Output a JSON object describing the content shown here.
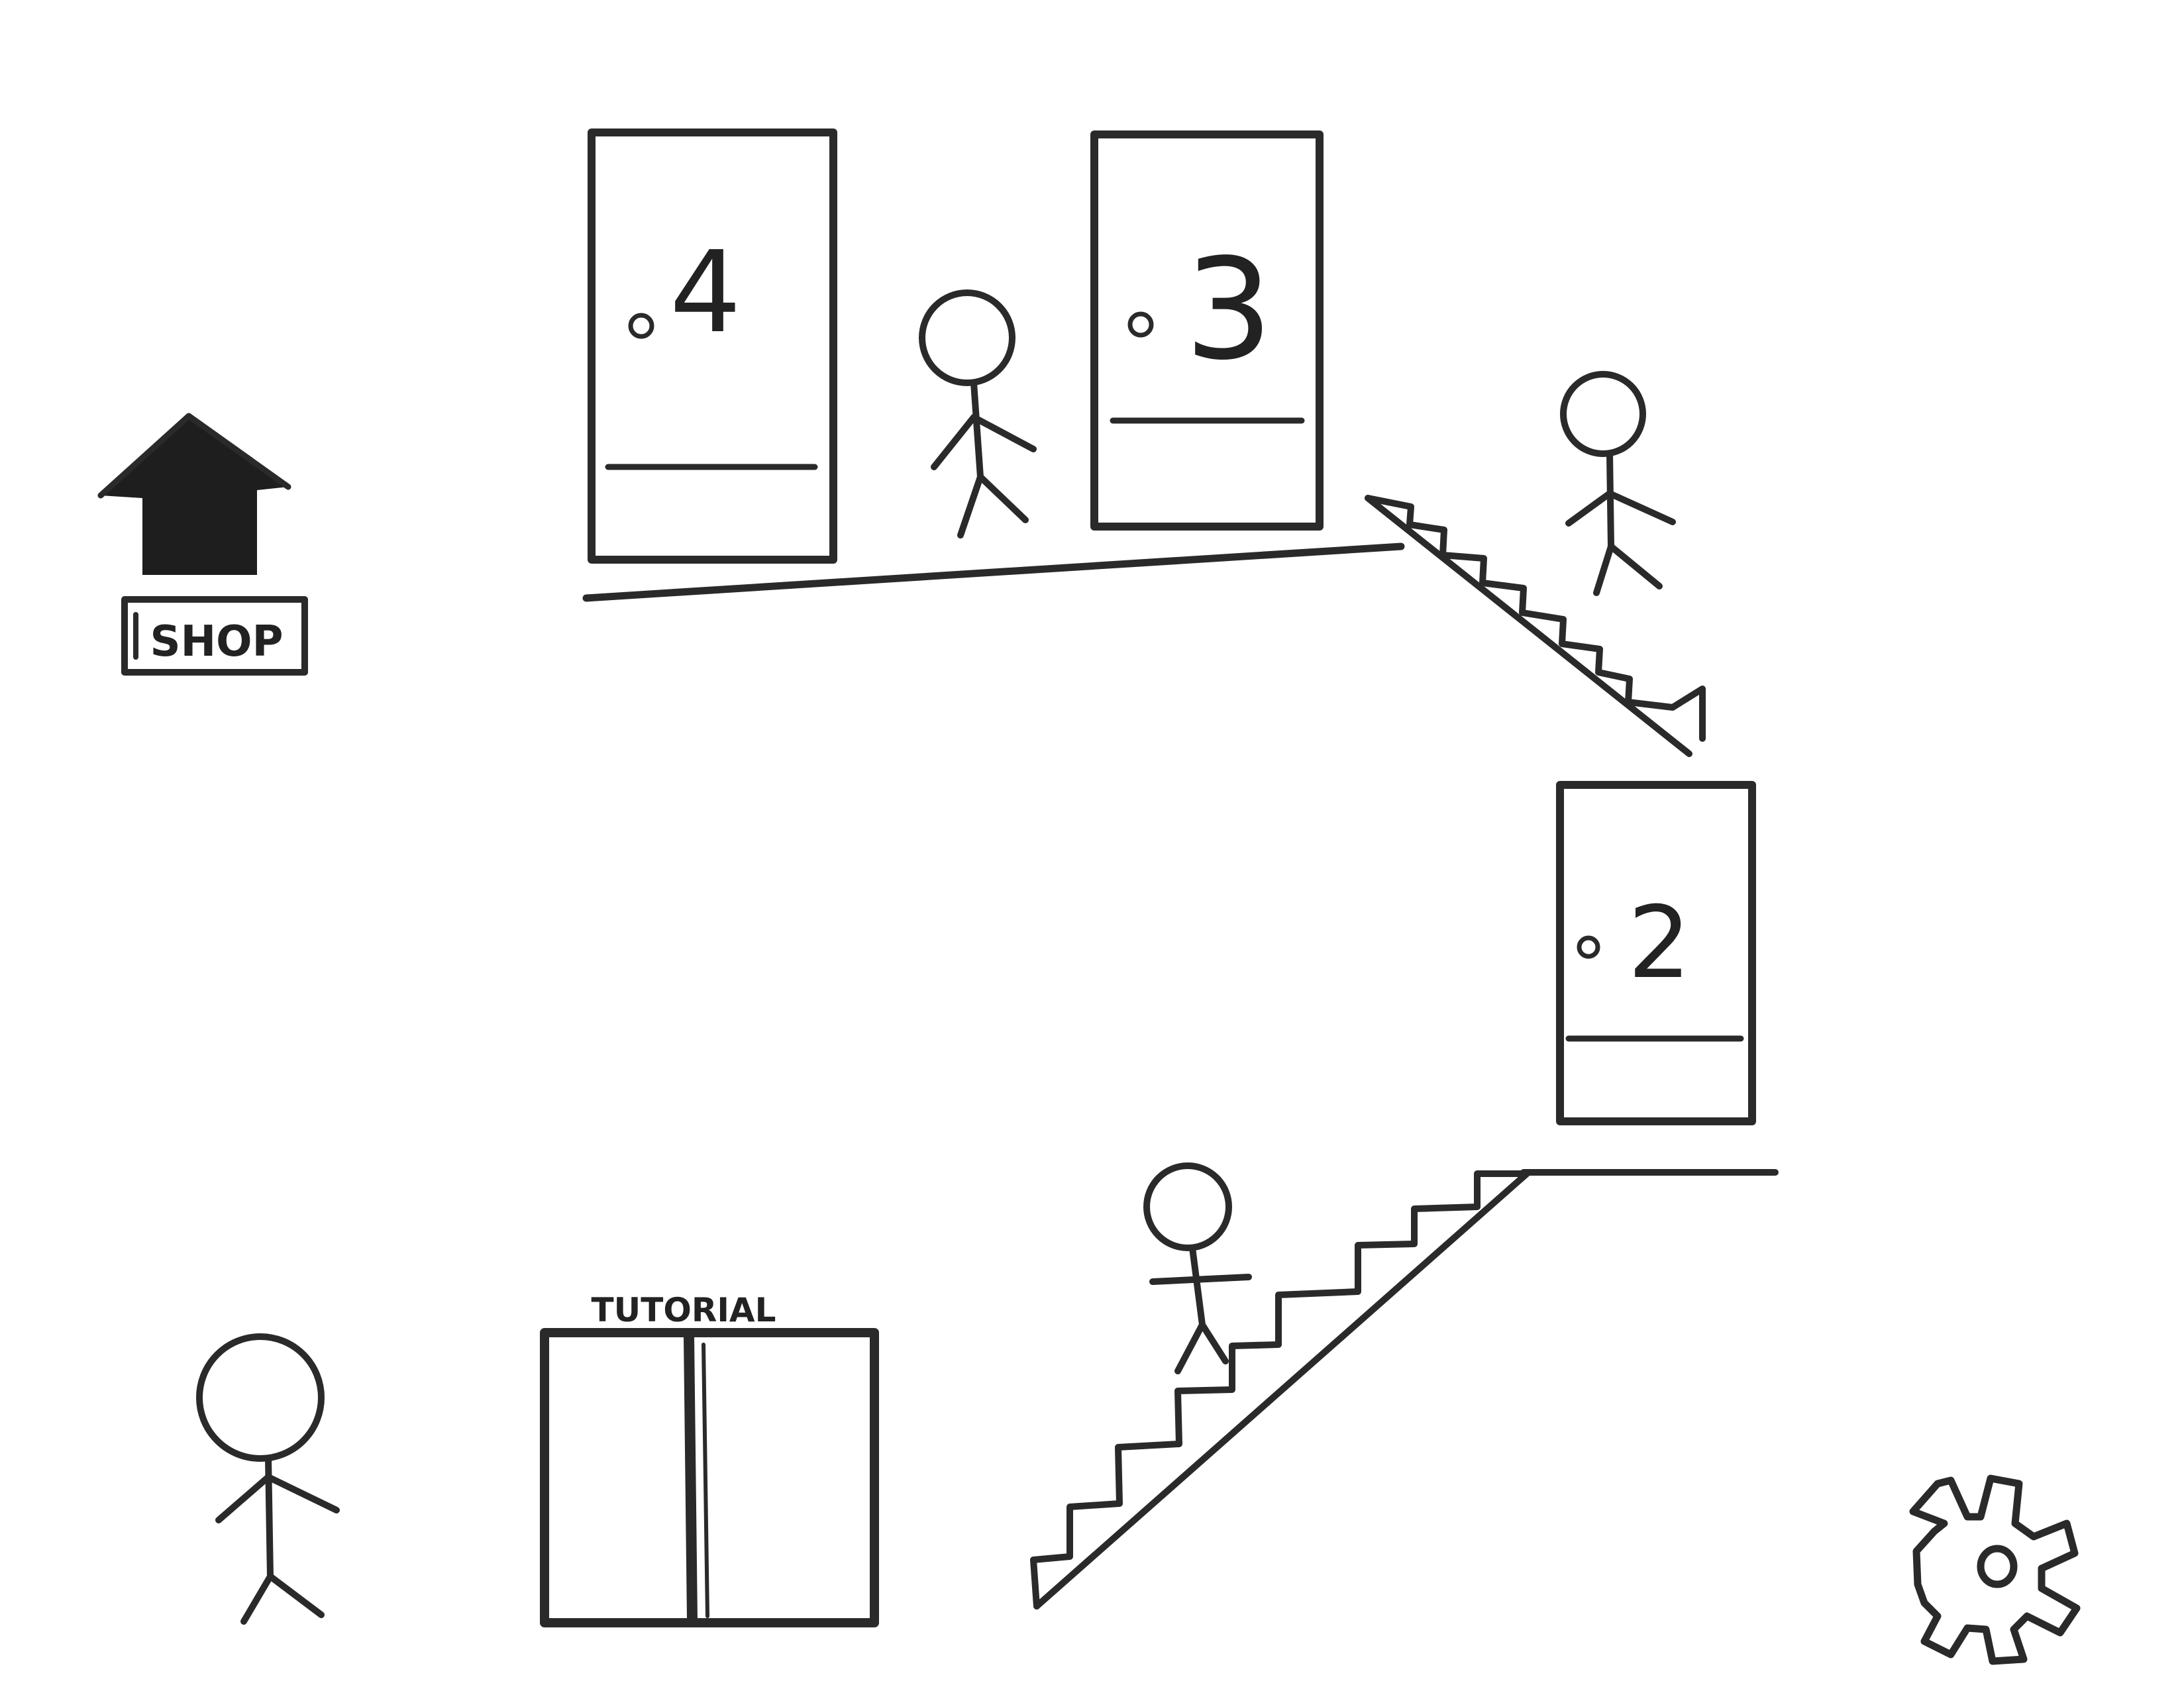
{
  "hud": {
    "shop_label": "SHOP",
    "shop_icon": "house-icon",
    "settings_icon": "gear-icon"
  },
  "elevator": {
    "label": "TUTORIAL"
  },
  "doors": [
    {
      "number": "2"
    },
    {
      "number": "3"
    },
    {
      "number": "4"
    }
  ],
  "colors": {
    "ink": "#2a2a2a",
    "background": "#ffffff"
  }
}
